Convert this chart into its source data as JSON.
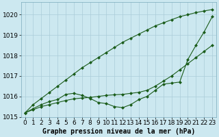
{
  "title": "Graphe pression niveau de la mer (hPa)",
  "bg_color": "#cce8f0",
  "grid_color": "#aaccd8",
  "line_color": "#1a5c1a",
  "xlim": [
    -0.5,
    23.5
  ],
  "ylim": [
    1015.0,
    1020.6
  ],
  "yticks": [
    1015,
    1016,
    1017,
    1018,
    1019,
    1020
  ],
  "xticks": [
    0,
    1,
    2,
    3,
    4,
    5,
    6,
    7,
    8,
    9,
    10,
    11,
    12,
    13,
    14,
    15,
    16,
    17,
    18,
    19,
    20,
    21,
    22,
    23
  ],
  "series": {
    "line_top": [
      1015.2,
      1015.6,
      1015.9,
      1016.2,
      1016.5,
      1016.8,
      1017.1,
      1017.4,
      1017.65,
      1017.9,
      1018.15,
      1018.4,
      1018.65,
      1018.85,
      1019.05,
      1019.25,
      1019.45,
      1019.6,
      1019.75,
      1019.9,
      1020.0,
      1020.1,
      1020.18,
      1020.25
    ],
    "line_bottom": [
      1015.2,
      1015.35,
      1015.5,
      1015.6,
      1015.7,
      1015.8,
      1015.88,
      1015.92,
      1015.95,
      1016.0,
      1016.05,
      1016.08,
      1016.1,
      1016.15,
      1016.2,
      1016.3,
      1016.5,
      1016.75,
      1017.0,
      1017.3,
      1017.6,
      1017.9,
      1018.2,
      1018.5
    ],
    "line_zigzag": [
      1015.2,
      1015.4,
      1015.6,
      1015.75,
      1015.85,
      1016.1,
      1016.15,
      1016.05,
      1015.9,
      1015.7,
      1015.65,
      1015.5,
      1015.45,
      1015.6,
      1015.85,
      1016.0,
      1016.3,
      1016.6,
      1016.65,
      1016.7,
      1017.8,
      1018.5,
      1019.15,
      1019.9
    ]
  },
  "xlabel_fontsize": 6.5,
  "ylabel_fontsize": 6.5,
  "title_fontsize": 7,
  "marker": "D",
  "markersize": 2.0,
  "linewidth": 0.8,
  "figsize": [
    3.2,
    2.0
  ],
  "dpi": 100
}
